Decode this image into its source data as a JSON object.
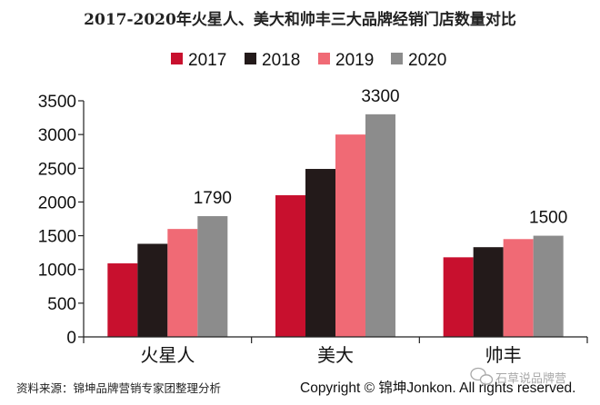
{
  "chart_data": {
    "type": "bar",
    "title": "2017-2020年火星人、美大和帅丰三大品牌经销门店数量对比",
    "categories": [
      "火星人",
      "美大",
      "帅丰"
    ],
    "series": [
      {
        "name": "2017",
        "color": "#c8102e",
        "values": [
          1090,
          2100,
          1180
        ]
      },
      {
        "name": "2018",
        "color": "#231a1a",
        "values": [
          1380,
          2490,
          1330
        ]
      },
      {
        "name": "2019",
        "color": "#f06a75",
        "values": [
          1600,
          3000,
          1450
        ]
      },
      {
        "name": "2020",
        "color": "#8c8c8c",
        "values": [
          1790,
          3300,
          1500
        ]
      }
    ],
    "ylim": [
      0,
      3500
    ],
    "yticks": [
      "0",
      "500",
      "1000",
      "1500",
      "2000",
      "2500",
      "3000",
      "3500"
    ],
    "data_labels": [
      "1790",
      "3300",
      "1500"
    ],
    "legend_position": "top",
    "grid": false,
    "xlabel": "",
    "ylabel": ""
  },
  "footer": {
    "source": "资料来源：锦坤品牌营销专家团整理分析",
    "copyright": "Copyright © 锦坤Jonkon. All rights reserved."
  },
  "watermark": {
    "text": "石草说品牌营",
    "icon": "wechat-icon"
  }
}
